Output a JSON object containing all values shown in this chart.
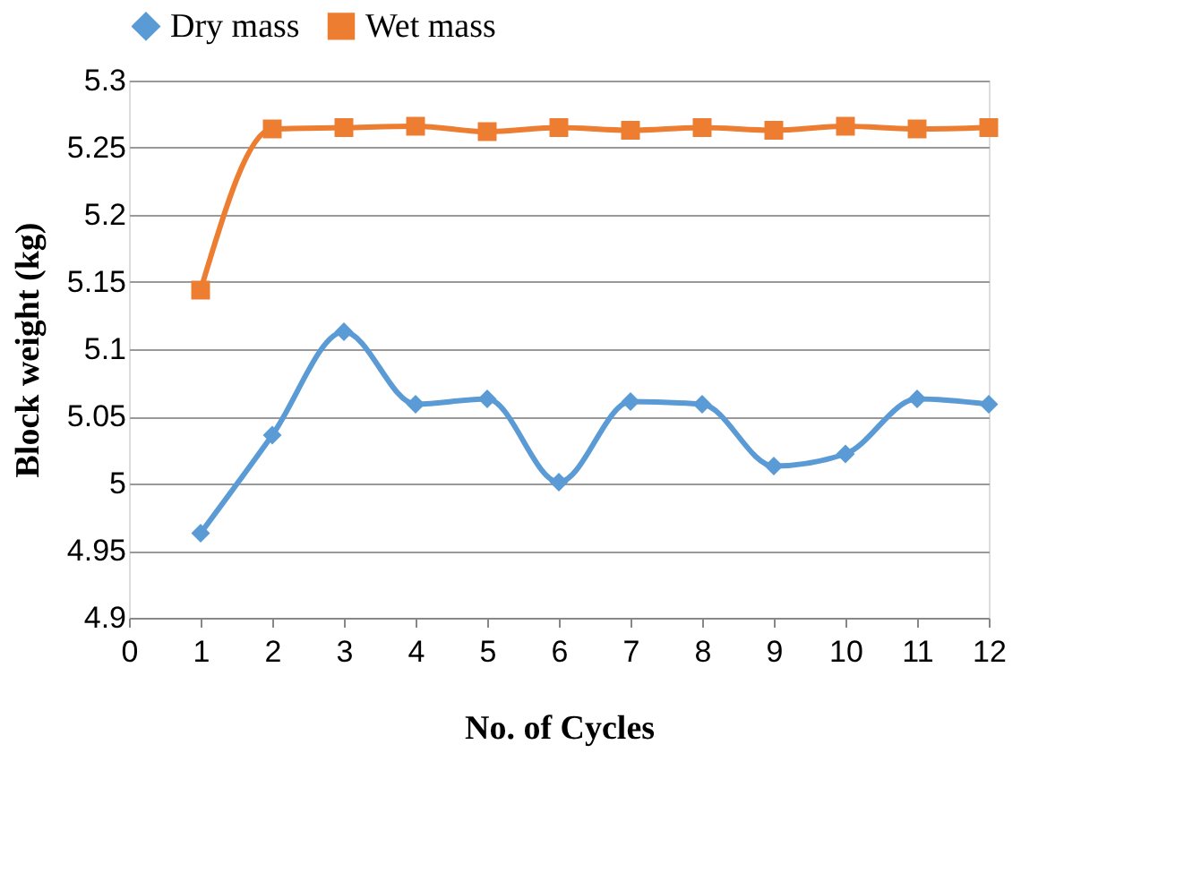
{
  "chart_data": {
    "type": "line",
    "xlabel": "No. of Cycles",
    "ylabel": "Block weight (kg)",
    "x": [
      1,
      2,
      3,
      4,
      5,
      6,
      7,
      8,
      9,
      10,
      11,
      12
    ],
    "series": [
      {
        "name": "Dry mass",
        "color": "#5b9bd5",
        "marker": "diamond",
        "values": [
          4.963,
          5.036,
          5.113,
          5.059,
          5.063,
          5.001,
          5.061,
          5.059,
          5.013,
          5.022,
          5.063,
          5.059
        ]
      },
      {
        "name": "Wet mass",
        "color": "#ed7d31",
        "marker": "square",
        "values": [
          5.144,
          5.264,
          5.265,
          5.266,
          5.262,
          5.265,
          5.263,
          5.265,
          5.263,
          5.266,
          5.264,
          5.265
        ]
      }
    ],
    "xlim": [
      0,
      12
    ],
    "xticks": [
      0,
      1,
      2,
      3,
      4,
      5,
      6,
      7,
      8,
      9,
      10,
      11,
      12
    ],
    "ylim": [
      4.9,
      5.3
    ],
    "yticks": [
      4.9,
      4.95,
      5,
      5.05,
      5.1,
      5.15,
      5.2,
      5.25,
      5.3
    ],
    "grid": "y",
    "legend": "top",
    "line_style": "solid"
  }
}
